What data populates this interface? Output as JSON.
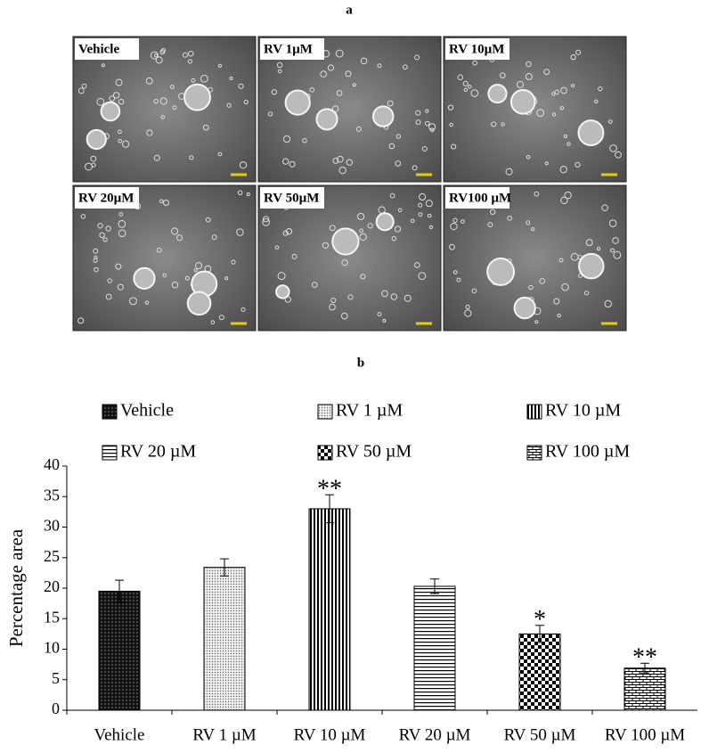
{
  "panel_a": {
    "label": "a",
    "images": [
      "Vehicle",
      "RV 1µM",
      "RV 10µM",
      "RV 20µM",
      "RV 50µM",
      "RV100 µM"
    ]
  },
  "chart_data": {
    "type": "bar",
    "title": "b",
    "ylabel": "Percentage area",
    "categories": [
      "Vehicle",
      "RV 1 µM",
      "RV 10 µM",
      "RV 20 µM",
      "RV 50 µM",
      "RV 100 µM"
    ],
    "values": [
      19.5,
      23.4,
      33,
      20.3,
      12.5,
      6.9
    ],
    "errors": [
      1.8,
      1.4,
      2.3,
      1.2,
      1.4,
      0.8
    ],
    "significance": [
      null,
      null,
      "**",
      null,
      "*",
      "**"
    ],
    "patterns": [
      "dots-dark",
      "dots-light",
      "vlines",
      "hlines",
      "checker",
      "bricks"
    ],
    "ylim": [
      0,
      40
    ],
    "yticks": [
      0,
      5,
      10,
      15,
      20,
      25,
      30,
      35,
      40
    ],
    "legend": true
  }
}
